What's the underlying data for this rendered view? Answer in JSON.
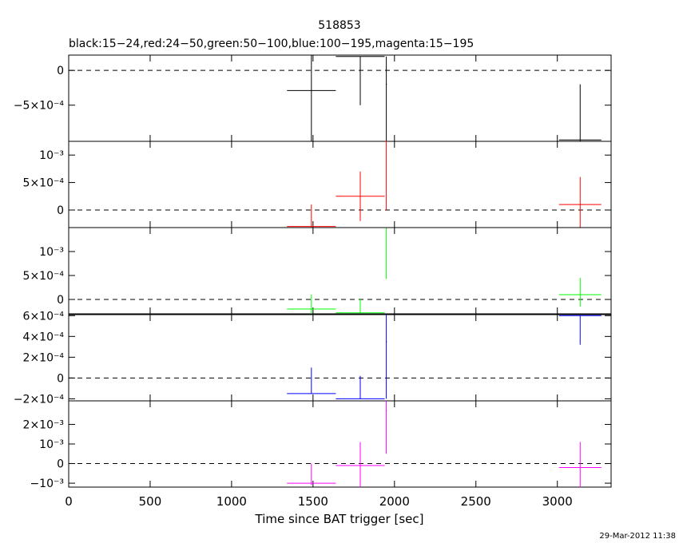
{
  "title": "518853",
  "subtitle": "black:15−24,red:24−50,green:50−100,blue:100−195,magenta:15−195",
  "xlabel": "Time since BAT trigger [sec]",
  "timestamp": "29-Mar-2012 11:38",
  "colors": {
    "black": "#000000",
    "red": "#ff0000",
    "green": "#00ff00",
    "blue": "#0000ff",
    "magenta": "#ff00ff"
  },
  "chart_data": {
    "type": "scatter",
    "shared_x": {
      "xlim": [
        0,
        3330
      ],
      "ticks": [
        0,
        500,
        1000,
        1500,
        2000,
        2500,
        3000
      ],
      "tick_labels": [
        "0",
        "500",
        "1000",
        "1500",
        "2000",
        "2500",
        "3000"
      ],
      "label": "Time since BAT trigger [sec]"
    },
    "panels": [
      {
        "band": "15-24",
        "color": "black",
        "ylim": [
          -0.00102,
          0.00022
        ],
        "yticks": [
          0,
          -0.0005
        ],
        "ytick_labels": [
          "0",
          "−5×10⁻⁴"
        ],
        "zero_line": true,
        "points": [
          {
            "x": 1490,
            "xerr": 150,
            "y": -0.00029,
            "yerr_lo": 0.00073,
            "yerr_hi": 0.00051
          },
          {
            "x": 1790,
            "xerr": 150,
            "y": 0.0002,
            "yerr_lo": 0.0007,
            "yerr_hi": 0.0
          },
          {
            "x": 1950,
            "xerr": 3,
            "y": -0.0002,
            "yerr_lo": 0.00082,
            "yerr_hi": 0.0004
          },
          {
            "x": 3140,
            "xerr": 130,
            "y": -0.001,
            "yerr_lo": 0.0002,
            "yerr_hi": 0.0008
          }
        ]
      },
      {
        "band": "24-50",
        "color": "red",
        "ylim": [
          -0.00032,
          0.00125
        ],
        "yticks": [
          0.001,
          0.0005,
          0
        ],
        "ytick_labels": [
          "10⁻³",
          "5×10⁻⁴",
          "0"
        ],
        "zero_line": true,
        "points": [
          {
            "x": 1490,
            "xerr": 150,
            "y": -0.0003,
            "yerr_lo": 0.0002,
            "yerr_hi": 0.0004
          },
          {
            "x": 1790,
            "xerr": 150,
            "y": 0.00025,
            "yerr_lo": 0.00045,
            "yerr_hi": 0.00045
          },
          {
            "x": 1950,
            "xerr": 3,
            "y": 0.00125,
            "yerr_lo": 0.00125,
            "yerr_hi": 0.0
          },
          {
            "x": 3140,
            "xerr": 130,
            "y": 0.0001,
            "yerr_lo": 0.00042,
            "yerr_hi": 0.0005
          }
        ]
      },
      {
        "band": "50-100",
        "color": "green",
        "ylim": [
          -0.0003,
          0.0015
        ],
        "yticks": [
          0.001,
          0.0005,
          0
        ],
        "ytick_labels": [
          "10⁻³",
          "5×10⁻⁴",
          "0"
        ],
        "zero_line": true,
        "points": [
          {
            "x": 1490,
            "xerr": 150,
            "y": -0.0002,
            "yerr_lo": 0.0002,
            "yerr_hi": 0.0003
          },
          {
            "x": 1790,
            "xerr": 150,
            "y": -0.00028,
            "yerr_lo": 0.0,
            "yerr_hi": 0.0003
          },
          {
            "x": 1950,
            "xerr": 3,
            "y": 0.00148,
            "yerr_lo": 0.00105,
            "yerr_hi": 0.0
          },
          {
            "x": 3140,
            "xerr": 130,
            "y": 0.0001,
            "yerr_lo": 0.00025,
            "yerr_hi": 0.00035
          }
        ]
      },
      {
        "band": "100-195",
        "color": "blue",
        "ylim": [
          -0.00022,
          0.00061
        ],
        "yticks": [
          0.0006,
          0.0004,
          0.0002,
          0,
          -0.0002
        ],
        "ytick_labels": [
          "6×10⁻⁴",
          "4×10⁻⁴",
          "2×10⁻⁴",
          "0",
          "−2×10⁻⁴"
        ],
        "zero_line": true,
        "points": [
          {
            "x": 1490,
            "xerr": 150,
            "y": -0.00015,
            "yerr_lo": 0.0,
            "yerr_hi": 0.00025
          },
          {
            "x": 1790,
            "xerr": 150,
            "y": -0.0002,
            "yerr_lo": 0.0,
            "yerr_hi": 0.00022
          },
          {
            "x": 1950,
            "xerr": 3,
            "y": 0.00035,
            "yerr_lo": 0.00055,
            "yerr_hi": 0.00026
          },
          {
            "x": 3140,
            "xerr": 130,
            "y": 0.0006,
            "yerr_lo": 0.00028,
            "yerr_hi": 0.0
          }
        ]
      },
      {
        "band": "15-195",
        "color": "magenta",
        "ylim": [
          -0.0012,
          0.0032
        ],
        "yticks": [
          0.002,
          0.001,
          0,
          -0.001
        ],
        "ytick_labels": [
          "2×10⁻³",
          "10⁻³",
          "0",
          "−10⁻³"
        ],
        "zero_line": true,
        "points": [
          {
            "x": 1490,
            "xerr": 150,
            "y": -0.001,
            "yerr_lo": 0.0001,
            "yerr_hi": 0.001
          },
          {
            "x": 1790,
            "xerr": 150,
            "y": -0.0001,
            "yerr_lo": 0.0011,
            "yerr_hi": 0.0012
          },
          {
            "x": 1950,
            "xerr": 3,
            "y": 0.0027,
            "yerr_lo": 0.0022,
            "yerr_hi": 0.0005
          },
          {
            "x": 3140,
            "xerr": 130,
            "y": -0.0002,
            "yerr_lo": 0.0011,
            "yerr_hi": 0.0013
          }
        ]
      }
    ]
  }
}
